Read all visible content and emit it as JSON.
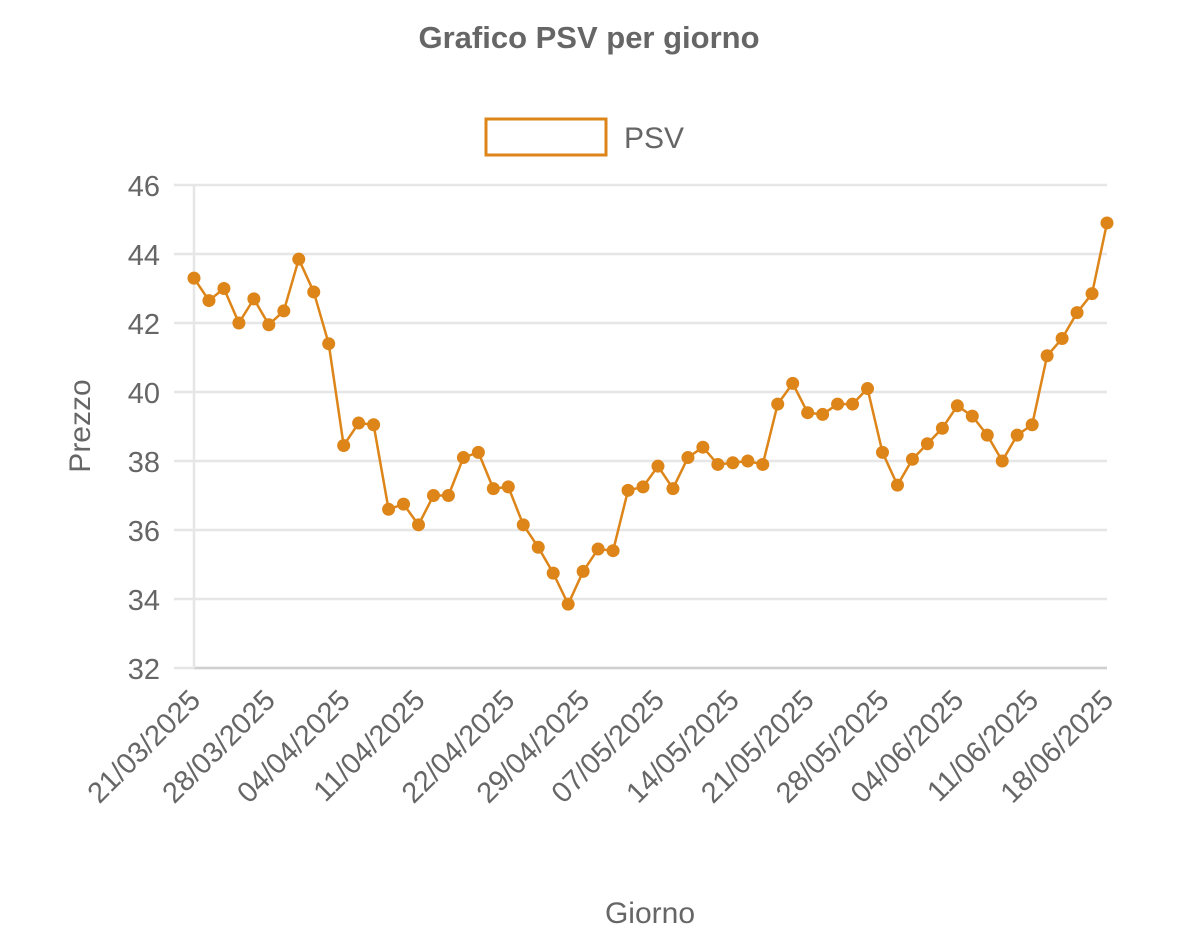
{
  "chart_data": {
    "type": "line",
    "title": "Grafico PSV per giorno",
    "xlabel": "Giorno",
    "ylabel": "Prezzo",
    "ylim": [
      32,
      46
    ],
    "yticks": [
      "32",
      "34",
      "36",
      "38",
      "40",
      "42",
      "44",
      "46"
    ],
    "grid": true,
    "legend_position": "top-center",
    "series_color": "#dd8519",
    "series": [
      {
        "name": "PSV",
        "x": [
          "21/03/2025",
          "24/03/2025",
          "25/03/2025",
          "26/03/2025",
          "27/03/2025",
          "28/03/2025",
          "31/03/2025",
          "01/04/2025",
          "02/04/2025",
          "03/04/2025",
          "04/04/2025",
          "07/04/2025",
          "08/04/2025",
          "09/04/2025",
          "10/04/2025",
          "11/04/2025",
          "14/04/2025",
          "15/04/2025",
          "16/04/2025",
          "17/04/2025",
          "18/04/2025",
          "22/04/2025",
          "23/04/2025",
          "24/04/2025",
          "25/04/2025",
          "28/04/2025",
          "29/04/2025",
          "30/04/2025",
          "02/05/2025",
          "05/05/2025",
          "06/05/2025",
          "07/05/2025",
          "08/05/2025",
          "09/05/2025",
          "12/05/2025",
          "13/05/2025",
          "14/05/2025",
          "15/05/2025",
          "16/05/2025",
          "19/05/2025",
          "20/05/2025",
          "21/05/2025",
          "22/05/2025",
          "23/05/2025",
          "26/05/2025",
          "27/05/2025",
          "28/05/2025",
          "29/05/2025",
          "30/05/2025",
          "02/06/2025",
          "03/06/2025",
          "04/06/2025",
          "05/06/2025",
          "06/06/2025",
          "09/06/2025",
          "10/06/2025",
          "11/06/2025",
          "12/06/2025",
          "13/06/2025",
          "16/06/2025",
          "17/06/2025",
          "18/06/2025"
        ],
        "values": [
          43.3,
          42.65,
          43.0,
          42.0,
          42.7,
          41.95,
          42.35,
          43.85,
          42.9,
          41.4,
          38.45,
          39.1,
          39.05,
          36.6,
          36.75,
          36.15,
          37.0,
          37.0,
          38.1,
          38.25,
          37.2,
          37.25,
          36.15,
          35.5,
          34.75,
          33.85,
          34.8,
          35.45,
          35.4,
          37.15,
          37.25,
          37.85,
          37.2,
          38.1,
          38.4,
          37.9,
          37.95,
          38.0,
          37.9,
          39.65,
          40.25,
          39.4,
          39.35,
          39.65,
          39.65,
          40.1,
          38.25,
          37.3,
          38.05,
          38.5,
          38.95,
          39.6,
          39.3,
          38.75,
          38.0,
          38.75,
          39.05,
          41.05,
          41.55,
          42.3,
          42.85,
          44.9
        ]
      }
    ],
    "xtick_labels": [
      "21/03/2025",
      "28/03/2025",
      "04/04/2025",
      "11/04/2025",
      "22/04/2025",
      "29/04/2025",
      "07/05/2025",
      "14/05/2025",
      "21/05/2025",
      "28/05/2025",
      "04/06/2025",
      "11/06/2025",
      "18/06/2025"
    ]
  }
}
